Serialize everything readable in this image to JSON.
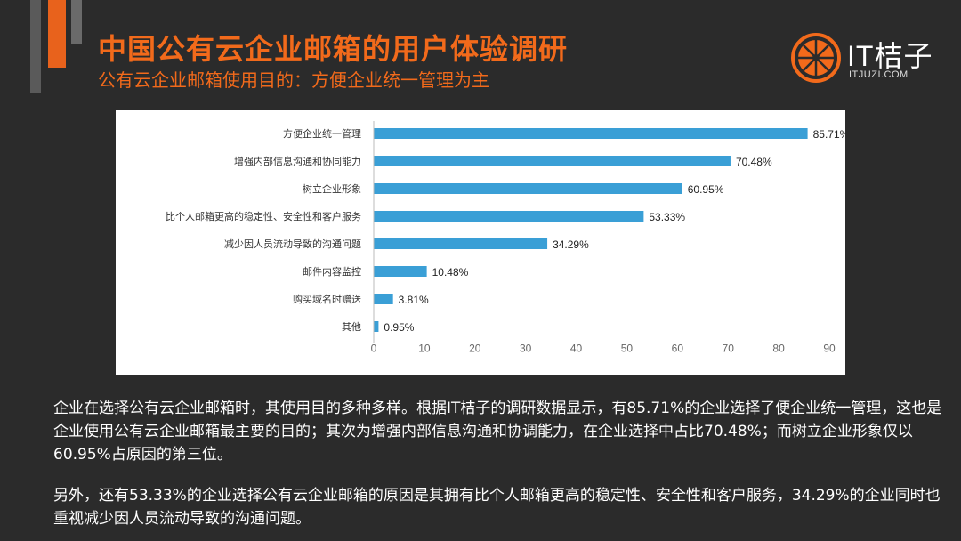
{
  "header": {
    "title": "中国公有云企业邮箱的用户体验调研",
    "subtitle": "公有云企业邮箱使用目的：方便企业统一管理为主"
  },
  "logo": {
    "name": "IT桔子",
    "url": "ITJUZI.COM"
  },
  "colors": {
    "accent": "#f26a1b",
    "bar": "#3a9fd6",
    "background": "#2b2b2b"
  },
  "chart_data": {
    "type": "bar",
    "orientation": "horizontal",
    "categories": [
      "方便企业统一管理",
      "增强内部信息沟通和协同能力",
      "树立企业形象",
      "比个人邮箱更高的稳定性、安全性和客户服务",
      "减少因人员流动导致的沟通问题",
      "邮件内容监控",
      "购买域名时赠送",
      "其他"
    ],
    "values": [
      85.71,
      70.48,
      60.95,
      53.33,
      34.29,
      10.48,
      3.81,
      0.95
    ],
    "value_labels": [
      "85.71%",
      "70.48%",
      "60.95%",
      "53.33%",
      "34.29%",
      "10.48%",
      "3.81%",
      "0.95%"
    ],
    "xlim": [
      0,
      90
    ],
    "xticks": [
      "0",
      "10",
      "20",
      "30",
      "40",
      "50",
      "60",
      "70",
      "80",
      "90"
    ],
    "grid": false
  },
  "body": {
    "paragraph1": "企业在选择公有云企业邮箱时，其使用目的多种多样。根据IT桔子的调研数据显示，有85.71%的企业选择了便企业统一管理，这也是企业使用公有云企业邮箱最主要的目的；其次为增强内部信息沟通和协调能力，在企业选择中占比70.48%；而树立企业形象仅以60.95%占原因的第三位。",
    "paragraph2": "另外，还有53.33%的企业选择公有云企业邮箱的原因是其拥有比个人邮箱更高的稳定性、安全性和客户服务，34.29%的企业同时也重视减少因人员流动导致的沟通问题。"
  }
}
